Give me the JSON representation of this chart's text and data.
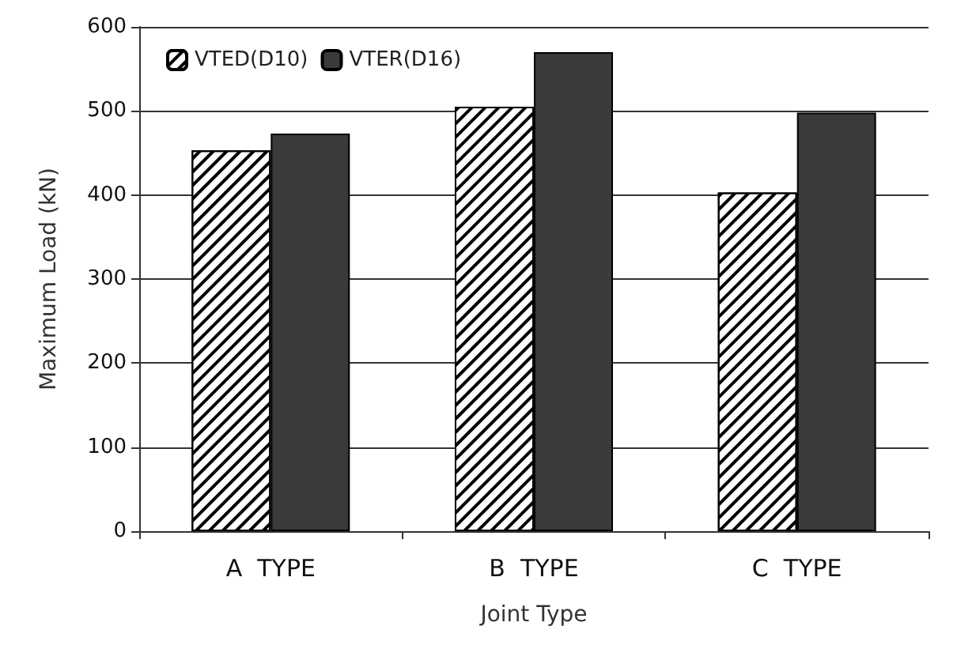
{
  "chart_data": {
    "type": "bar",
    "xlabel": "Joint Type",
    "ylabel": "Maximum Load (kN)",
    "categories": [
      "A  TYPE",
      "B  TYPE",
      "C  TYPE"
    ],
    "series": [
      {
        "name": "VTED(D10)",
        "color": "#ffffff",
        "values": [
          453,
          505,
          403
        ]
      },
      {
        "name": "VTER(D16)",
        "color": "#3a3a3a",
        "values": [
          473,
          570,
          498
        ]
      }
    ],
    "ylim": [
      0,
      600
    ],
    "yticks": [
      0,
      100,
      200,
      300,
      400,
      500,
      600
    ],
    "grid": "y",
    "legend": "top left"
  }
}
